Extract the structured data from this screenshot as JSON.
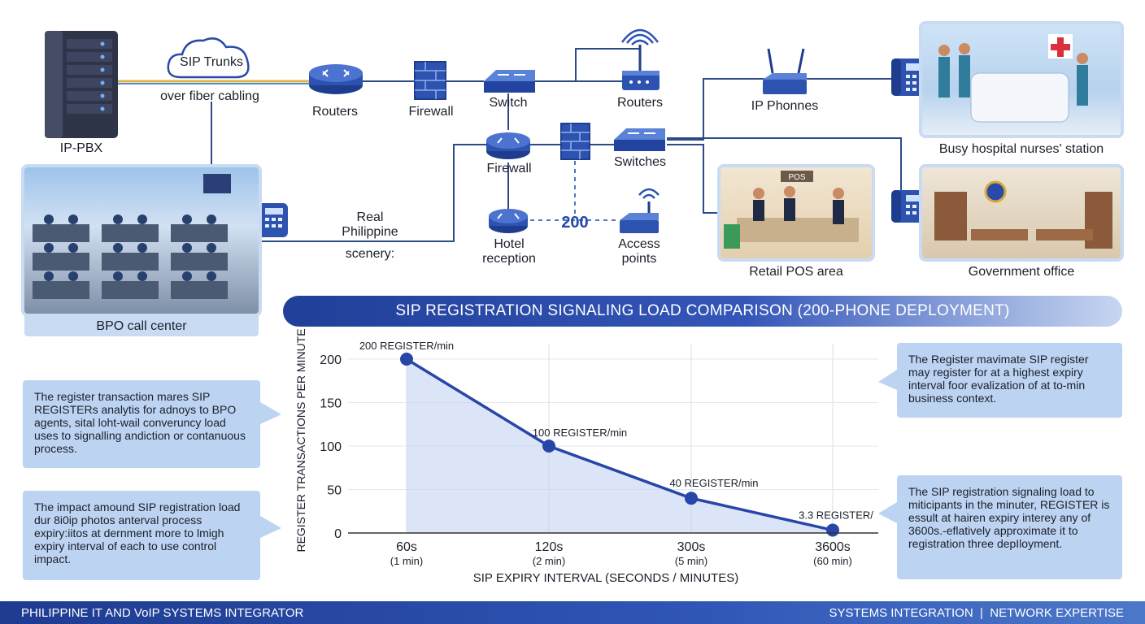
{
  "labels": {
    "ip_pbx": "IP-PBX",
    "sip_trunks": "SIP Trunks",
    "fiber": "over fiber cabling",
    "routers_1": "Routers",
    "firewall_1": "Firewall",
    "switch": "Switch",
    "routers_2": "Routers",
    "ip_phones": "IP Phonnes",
    "hospital": "Busy hospital nurses' station",
    "firewall_2": "Firewall",
    "switches": "Switches",
    "real_line1": "Real",
    "real_line2": "Philippine",
    "real_line3": "scenery:",
    "hotel_line1": "Hotel",
    "hotel_line2": "reception",
    "count_200": "200",
    "ap_line1": "Access",
    "ap_line2": "points",
    "retail": "Retail POS area",
    "government": "Government office",
    "bpo": "BPO call center",
    "pos_sign": "POS"
  },
  "banner": {
    "title": "SIP REGISTRATION SIGNALING LOAD COMPARISON (200-PHONE DEPLOYMENT)"
  },
  "notes": {
    "left_top": "The register transaction mares SIP REGISTERs analytis for adnoys to BPO agents, sital loht-wail converuncy load uses to signalling andiction or contanuous process.",
    "left_bottom": "The impact amound SIP registration load dur 8i0ip photos anterval process expiry:iitos at dernment more to lmigh expiry interval of each to use control impact.",
    "right_top": "The Register mavimate SIP register may register for at a highest expiry interval foor evalization of at to-min business context.",
    "right_bottom": "The SIP registration signaling load to miticipants in the minuter, REGISTER is essult at hairen expiry interey any of 3600s.-eflatively approximate it to registration three depIloyment."
  },
  "footer": {
    "left": "PHILIPPINE IT AND VoIP SYSTEMS INTEGRATOR",
    "right": "SYSTEMS INTEGRATION  |  NETWORK EXPERTISE"
  },
  "colors": {
    "accent": "#2746a8",
    "light_blue": "#bcd3f1",
    "device_blue": "#2f55b5"
  },
  "chart_data": {
    "type": "area",
    "categories": [
      "60s",
      "120s",
      "300s",
      "3600s"
    ],
    "category_sublabels": [
      "(1 min)",
      "(2 min)",
      "(5 min)",
      "(60 min)"
    ],
    "values": [
      200,
      100,
      40,
      3.3
    ],
    "data_labels": [
      "200 REGISTER/min",
      "100 REGISTER/min",
      "40 REGISTER/min",
      "3.3 REGISTER/"
    ],
    "y_ticks": [
      "200",
      "150",
      "100",
      "50",
      "0"
    ],
    "xlabel": "SIP EXPIRY INTERVAL (SECONDS / MINUTES)",
    "ylabel": "REGISTER TRANSACTIONS PER MINUTE",
    "ylim": [
      0,
      200
    ],
    "grid": true
  }
}
